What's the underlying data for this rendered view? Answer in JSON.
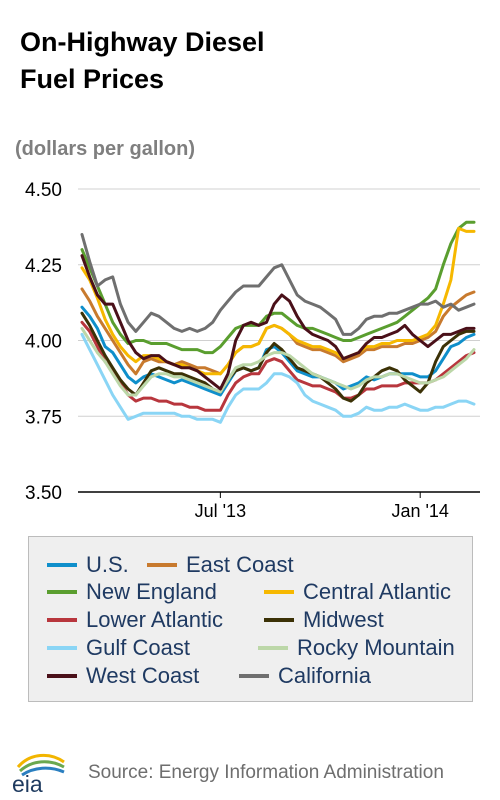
{
  "header": {
    "title_line1": "On-Highway Diesel",
    "title_line2": "Fuel Prices",
    "subtitle": "(dollars per gallon)"
  },
  "footer": {
    "logo_text": "eia",
    "source": "Source: Energy Information Administration"
  },
  "chart_data": {
    "type": "line",
    "title": "On-Highway Diesel Fuel Prices",
    "ylabel": "(dollars per gallon)",
    "xlabel": "",
    "ylim": [
      3.5,
      4.5
    ],
    "yticks": [
      "4.50",
      "4.25",
      "4.00",
      "3.75",
      "3.50"
    ],
    "ytick_values": [
      4.5,
      4.25,
      4.0,
      3.75,
      3.5
    ],
    "xticks": [
      {
        "label": "Jul '13",
        "index": 18
      },
      {
        "label": "Jan '14",
        "index": 44
      }
    ],
    "grid": "horizontal",
    "legend_position": "bottom",
    "x_count": 52,
    "series": [
      {
        "name": "U.S.",
        "color": "#0f8fcb",
        "values": [
          4.11,
          4.08,
          4.04,
          3.98,
          3.96,
          3.92,
          3.88,
          3.86,
          3.88,
          3.89,
          3.88,
          3.87,
          3.86,
          3.87,
          3.86,
          3.85,
          3.84,
          3.83,
          3.82,
          3.86,
          3.9,
          3.91,
          3.9,
          3.91,
          3.97,
          3.98,
          3.96,
          3.93,
          3.9,
          3.89,
          3.88,
          3.88,
          3.87,
          3.86,
          3.84,
          3.85,
          3.86,
          3.88,
          3.87,
          3.88,
          3.89,
          3.89,
          3.89,
          3.89,
          3.88,
          3.88,
          3.9,
          3.94,
          3.98,
          3.99,
          4.01,
          4.02
        ]
      },
      {
        "name": "East Coast",
        "color": "#c87a2e",
        "values": [
          4.17,
          4.13,
          4.08,
          4.04,
          4.0,
          3.96,
          3.92,
          3.89,
          3.93,
          3.94,
          3.93,
          3.93,
          3.92,
          3.93,
          3.92,
          3.91,
          3.91,
          3.9,
          3.89,
          3.92,
          3.96,
          3.98,
          3.98,
          3.99,
          4.04,
          4.05,
          4.04,
          4.02,
          3.99,
          3.98,
          3.97,
          3.97,
          3.96,
          3.95,
          3.93,
          3.94,
          3.95,
          3.97,
          3.97,
          3.98,
          3.98,
          3.98,
          3.99,
          3.99,
          4.0,
          4.01,
          4.03,
          4.08,
          4.11,
          4.13,
          4.15,
          4.16
        ]
      },
      {
        "name": "New England",
        "color": "#5a9e2f",
        "values": [
          4.3,
          4.24,
          4.18,
          4.12,
          4.06,
          4.02,
          3.99,
          4.0,
          4.0,
          3.99,
          3.99,
          3.99,
          3.98,
          3.97,
          3.97,
          3.97,
          3.96,
          3.96,
          3.98,
          4.01,
          4.04,
          4.05,
          4.05,
          4.05,
          4.08,
          4.09,
          4.09,
          4.07,
          4.05,
          4.04,
          4.04,
          4.03,
          4.02,
          4.01,
          4.0,
          4.0,
          4.01,
          4.02,
          4.03,
          4.04,
          4.05,
          4.06,
          4.08,
          4.1,
          4.12,
          4.14,
          4.17,
          4.25,
          4.32,
          4.37,
          4.39,
          4.39
        ]
      },
      {
        "name": "Central Atlantic",
        "color": "#f6b800",
        "values": [
          4.24,
          4.2,
          4.14,
          4.07,
          4.02,
          3.98,
          3.95,
          3.93,
          3.95,
          3.95,
          3.94,
          3.93,
          3.92,
          3.92,
          3.91,
          3.9,
          3.89,
          3.89,
          3.89,
          3.92,
          3.96,
          3.98,
          3.98,
          3.99,
          4.04,
          4.05,
          4.04,
          4.02,
          4.0,
          3.99,
          3.98,
          3.98,
          3.97,
          3.96,
          3.94,
          3.95,
          3.96,
          3.98,
          3.98,
          3.99,
          3.99,
          4.0,
          4.0,
          4.0,
          4.01,
          4.02,
          4.05,
          4.12,
          4.2,
          4.37,
          4.36,
          4.36
        ]
      },
      {
        "name": "Lower Atlantic",
        "color": "#b8363d",
        "values": [
          4.06,
          4.03,
          3.98,
          3.93,
          3.9,
          3.86,
          3.82,
          3.8,
          3.81,
          3.81,
          3.8,
          3.8,
          3.79,
          3.79,
          3.78,
          3.78,
          3.77,
          3.77,
          3.77,
          3.82,
          3.86,
          3.88,
          3.89,
          3.89,
          3.93,
          3.94,
          3.93,
          3.9,
          3.87,
          3.86,
          3.85,
          3.85,
          3.84,
          3.83,
          3.81,
          3.81,
          3.82,
          3.84,
          3.84,
          3.85,
          3.85,
          3.85,
          3.86,
          3.86,
          3.86,
          3.86,
          3.87,
          3.89,
          3.91,
          3.93,
          3.95,
          3.96
        ]
      },
      {
        "name": "Midwest",
        "color": "#3b3106",
        "values": [
          4.09,
          4.05,
          4.0,
          3.95,
          3.91,
          3.87,
          3.84,
          3.82,
          3.86,
          3.9,
          3.91,
          3.9,
          3.89,
          3.89,
          3.88,
          3.87,
          3.86,
          3.84,
          3.83,
          3.87,
          3.9,
          3.91,
          3.9,
          3.91,
          3.96,
          3.99,
          3.97,
          3.94,
          3.91,
          3.9,
          3.89,
          3.88,
          3.86,
          3.84,
          3.81,
          3.8,
          3.82,
          3.86,
          3.88,
          3.9,
          3.91,
          3.9,
          3.87,
          3.85,
          3.83,
          3.86,
          3.93,
          3.98,
          4.0,
          4.02,
          4.03,
          4.03
        ]
      },
      {
        "name": "Gulf Coast",
        "color": "#8ad5f5",
        "values": [
          4.02,
          3.97,
          3.92,
          3.87,
          3.82,
          3.78,
          3.74,
          3.75,
          3.76,
          3.76,
          3.76,
          3.76,
          3.76,
          3.75,
          3.75,
          3.74,
          3.74,
          3.74,
          3.73,
          3.78,
          3.82,
          3.84,
          3.84,
          3.84,
          3.86,
          3.89,
          3.89,
          3.88,
          3.86,
          3.82,
          3.8,
          3.79,
          3.78,
          3.77,
          3.75,
          3.75,
          3.76,
          3.78,
          3.77,
          3.77,
          3.78,
          3.78,
          3.79,
          3.78,
          3.77,
          3.77,
          3.78,
          3.78,
          3.79,
          3.8,
          3.8,
          3.79
        ]
      },
      {
        "name": "Rocky Mountain",
        "color": "#bcd7a8",
        "values": [
          4.04,
          4.0,
          3.96,
          3.93,
          3.89,
          3.85,
          3.82,
          3.82,
          3.85,
          3.88,
          3.89,
          3.89,
          3.88,
          3.88,
          3.87,
          3.86,
          3.85,
          3.84,
          3.83,
          3.87,
          3.91,
          3.92,
          3.92,
          3.93,
          3.95,
          3.96,
          3.96,
          3.95,
          3.93,
          3.91,
          3.89,
          3.88,
          3.87,
          3.86,
          3.85,
          3.84,
          3.85,
          3.87,
          3.88,
          3.88,
          3.89,
          3.89,
          3.88,
          3.87,
          3.86,
          3.86,
          3.87,
          3.88,
          3.9,
          3.92,
          3.94,
          3.97
        ]
      },
      {
        "name": "West Coast",
        "color": "#4a1019",
        "values": [
          4.28,
          4.21,
          4.15,
          4.12,
          4.12,
          4.06,
          4.0,
          3.96,
          3.94,
          3.95,
          3.95,
          3.93,
          3.92,
          3.91,
          3.91,
          3.9,
          3.88,
          3.86,
          3.84,
          3.89,
          4.0,
          4.05,
          4.06,
          4.05,
          4.06,
          4.12,
          4.15,
          4.13,
          4.08,
          4.04,
          4.02,
          4.01,
          4.0,
          3.98,
          3.94,
          3.95,
          3.96,
          3.99,
          4.01,
          4.01,
          4.02,
          4.03,
          4.05,
          4.02,
          4.0,
          3.98,
          4.0,
          4.02,
          4.02,
          4.03,
          4.04,
          4.04
        ]
      },
      {
        "name": "California",
        "color": "#6f6f6f",
        "values": [
          4.35,
          4.26,
          4.18,
          4.2,
          4.21,
          4.12,
          4.06,
          4.03,
          4.06,
          4.09,
          4.08,
          4.06,
          4.04,
          4.03,
          4.04,
          4.03,
          4.04,
          4.06,
          4.1,
          4.13,
          4.16,
          4.18,
          4.18,
          4.18,
          4.21,
          4.24,
          4.25,
          4.2,
          4.15,
          4.13,
          4.12,
          4.11,
          4.09,
          4.07,
          4.02,
          4.02,
          4.04,
          4.07,
          4.08,
          4.08,
          4.09,
          4.09,
          4.1,
          4.11,
          4.12,
          4.12,
          4.13,
          4.11,
          4.12,
          4.1,
          4.11,
          4.12
        ]
      }
    ]
  }
}
